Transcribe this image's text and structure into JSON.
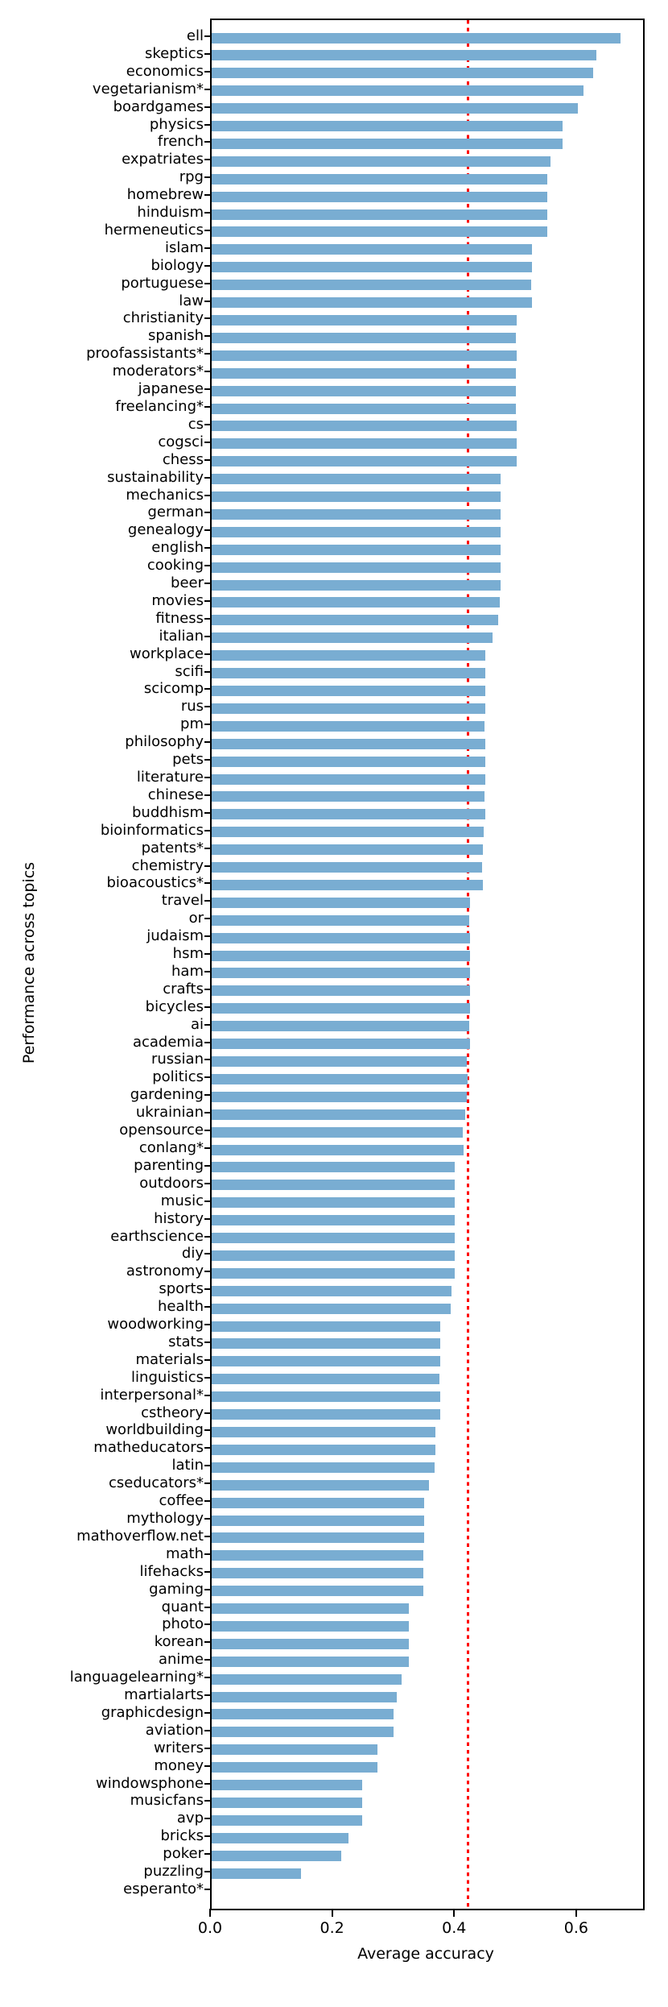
{
  "chart_data": {
    "type": "bar",
    "orientation": "horizontal",
    "title": "",
    "xlabel": "Average accuracy",
    "ylabel": "Performance across topics",
    "xlim": [
      0,
      0.707
    ],
    "xticks": [
      0.0,
      0.2,
      0.4,
      0.6
    ],
    "grid": false,
    "bar_color": "#79add2",
    "reference_line": {
      "value": 0.42,
      "color": "#ff0000",
      "style": "dotted",
      "orientation": "vertical"
    },
    "categories": [
      "ell",
      "skeptics",
      "economics",
      "vegetarianism*",
      "boardgames",
      "physics",
      "french",
      "expatriates",
      "rpg",
      "homebrew",
      "hinduism",
      "hermeneutics",
      "islam",
      "biology",
      "portuguese",
      "law",
      "christianity",
      "spanish",
      "proofassistants*",
      "moderators*",
      "japanese",
      "freelancing*",
      "cs",
      "cogsci",
      "chess",
      "sustainability",
      "mechanics",
      "german",
      "genealogy",
      "english",
      "cooking",
      "beer",
      "movies",
      "fitness",
      "italian",
      "workplace",
      "scifi",
      "scicomp",
      "rus",
      "pm",
      "philosophy",
      "pets",
      "literature",
      "chinese",
      "buddhism",
      "bioinformatics",
      "patents*",
      "chemistry",
      "bioacoustics*",
      "travel",
      "or",
      "judaism",
      "hsm",
      "ham",
      "crafts",
      "bicycles",
      "ai",
      "academia",
      "russian",
      "politics",
      "gardening",
      "ukrainian",
      "opensource",
      "conlang*",
      "parenting",
      "outdoors",
      "music",
      "history",
      "earthscience",
      "diy",
      "astronomy",
      "sports",
      "health",
      "woodworking",
      "stats",
      "materials",
      "linguistics",
      "interpersonal*",
      "cstheory",
      "worldbuilding",
      "matheducators",
      "latin",
      "cseducators*",
      "coffee",
      "mythology",
      "mathoverflow.net",
      "math",
      "lifehacks",
      "gaming",
      "quant",
      "photo",
      "korean",
      "anime",
      "languagelearning*",
      "martialarts",
      "graphicdesign",
      "aviation",
      "writers",
      "money",
      "windowsphone",
      "musicfans",
      "avp",
      "bricks",
      "poker",
      "puzzling",
      "esperanto*"
    ],
    "values": [
      0.67,
      0.63,
      0.625,
      0.61,
      0.6,
      0.575,
      0.575,
      0.555,
      0.55,
      0.55,
      0.55,
      0.55,
      0.525,
      0.525,
      0.523,
      0.525,
      0.5,
      0.498,
      0.5,
      0.498,
      0.498,
      0.498,
      0.5,
      0.5,
      0.5,
      0.474,
      0.474,
      0.474,
      0.473,
      0.473,
      0.474,
      0.474,
      0.472,
      0.469,
      0.46,
      0.449,
      0.448,
      0.448,
      0.448,
      0.447,
      0.448,
      0.448,
      0.448,
      0.447,
      0.448,
      0.446,
      0.444,
      0.443,
      0.444,
      0.423,
      0.422,
      0.423,
      0.424,
      0.423,
      0.424,
      0.423,
      0.422,
      0.423,
      0.418,
      0.419,
      0.418,
      0.415,
      0.412,
      0.413,
      0.399,
      0.398,
      0.398,
      0.398,
      0.398,
      0.399,
      0.398,
      0.393,
      0.392,
      0.375,
      0.374,
      0.374,
      0.373,
      0.374,
      0.374,
      0.367,
      0.367,
      0.365,
      0.356,
      0.348,
      0.348,
      0.348,
      0.347,
      0.347,
      0.347,
      0.323,
      0.323,
      0.323,
      0.323,
      0.311,
      0.303,
      0.298,
      0.298,
      0.272,
      0.272,
      0.247,
      0.247,
      0.247,
      0.224,
      0.213,
      0.147,
      0.0
    ]
  }
}
